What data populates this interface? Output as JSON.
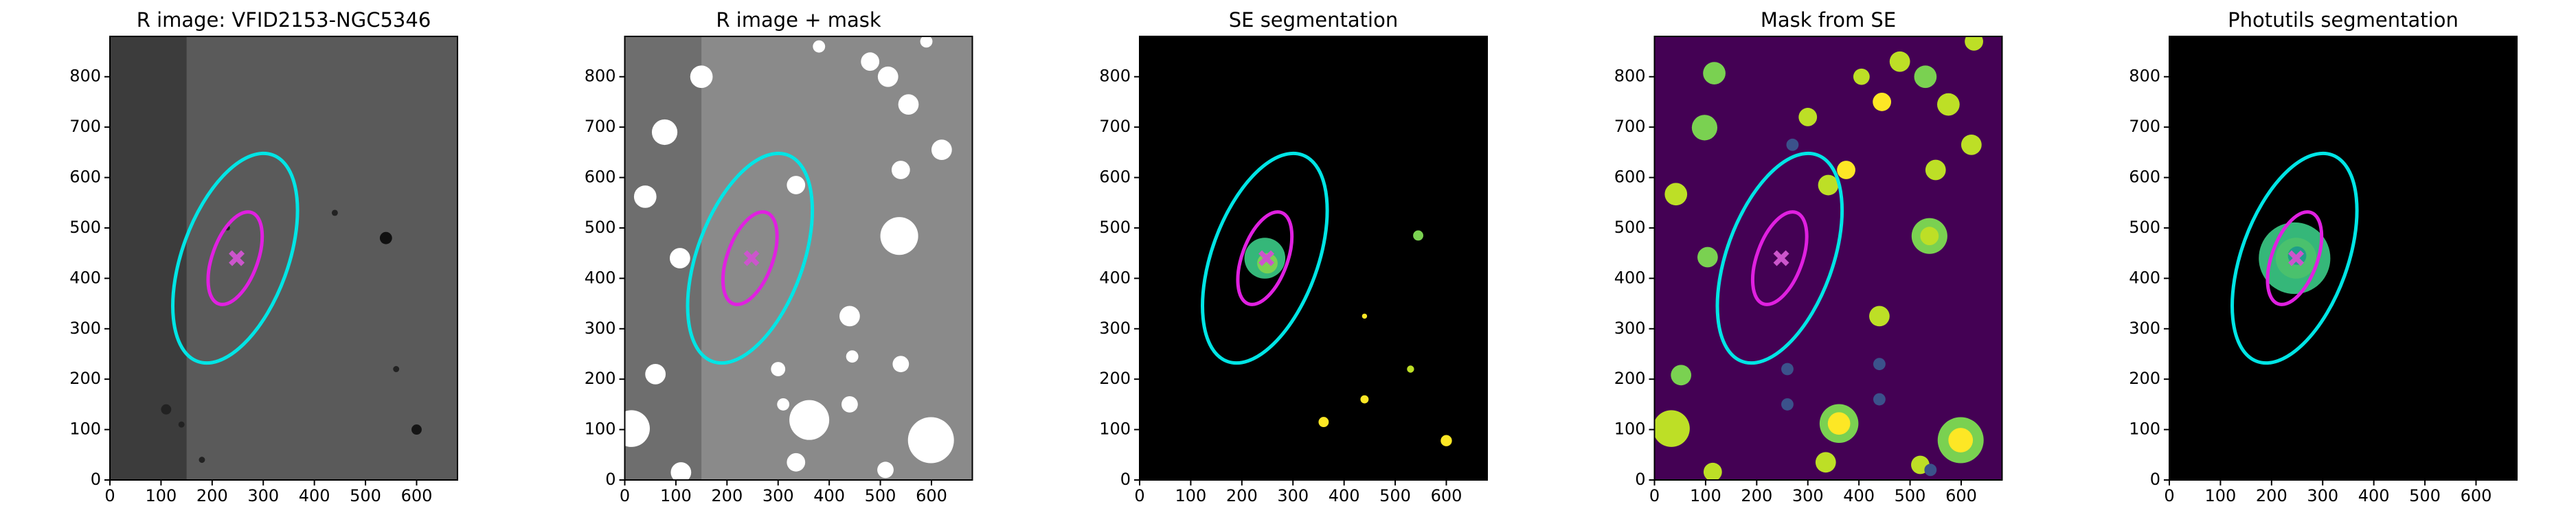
{
  "chart_data": [
    {
      "type": "image",
      "title": "R image: VFID2153-NGC5346",
      "xlim": [
        0,
        680
      ],
      "ylim": [
        0,
        880
      ],
      "xticks": [
        0,
        100,
        200,
        300,
        400,
        500,
        600
      ],
      "yticks": [
        0,
        100,
        200,
        300,
        400,
        500,
        600,
        700,
        800
      ],
      "ellipses": [
        {
          "center": [
            245,
            440
          ],
          "semi_axes": [
            215,
            105
          ],
          "angle": 70,
          "color": "#00e5e5"
        },
        {
          "center": [
            245,
            440
          ],
          "semi_axes": [
            95,
            45
          ],
          "angle": 70,
          "color": "#e020e0"
        }
      ],
      "marker": {
        "x": 248,
        "y": 440,
        "color": "#cc55cc"
      }
    },
    {
      "type": "image",
      "title": "R image + mask",
      "xlim": [
        0,
        680
      ],
      "ylim": [
        0,
        880
      ],
      "xticks": [
        0,
        100,
        200,
        300,
        400,
        500,
        600
      ],
      "yticks": [
        0,
        100,
        200,
        300,
        400,
        500,
        600,
        700,
        800
      ],
      "ellipses": [
        {
          "center": [
            245,
            440
          ],
          "semi_axes": [
            215,
            105
          ],
          "angle": 70,
          "color": "#00e5e5"
        },
        {
          "center": [
            245,
            440
          ],
          "semi_axes": [
            95,
            45
          ],
          "angle": 70,
          "color": "#e020e0"
        }
      ],
      "marker": {
        "x": 248,
        "y": 440,
        "color": "#cc55cc"
      }
    },
    {
      "type": "image",
      "title": "SE segmentation",
      "xlim": [
        0,
        680
      ],
      "ylim": [
        0,
        880
      ],
      "xticks": [
        0,
        100,
        200,
        300,
        400,
        500,
        600
      ],
      "yticks": [
        0,
        100,
        200,
        300,
        400,
        500,
        600,
        700,
        800
      ],
      "ellipses": [
        {
          "center": [
            245,
            440
          ],
          "semi_axes": [
            215,
            105
          ],
          "angle": 70,
          "color": "#00e5e5"
        },
        {
          "center": [
            245,
            440
          ],
          "semi_axes": [
            95,
            45
          ],
          "angle": 70,
          "color": "#e020e0"
        }
      ],
      "marker": {
        "x": 248,
        "y": 440,
        "color": "#cc55cc"
      }
    },
    {
      "type": "image",
      "title": "Mask from SE",
      "xlim": [
        0,
        680
      ],
      "ylim": [
        0,
        880
      ],
      "xticks": [
        0,
        100,
        200,
        300,
        400,
        500,
        600
      ],
      "yticks": [
        0,
        100,
        200,
        300,
        400,
        500,
        600,
        700,
        800
      ],
      "ellipses": [
        {
          "center": [
            245,
            440
          ],
          "semi_axes": [
            215,
            105
          ],
          "angle": 70,
          "color": "#00e5e5"
        },
        {
          "center": [
            245,
            440
          ],
          "semi_axes": [
            95,
            45
          ],
          "angle": 70,
          "color": "#e020e0"
        }
      ],
      "marker": {
        "x": 248,
        "y": 440,
        "color": "#cc55cc"
      }
    },
    {
      "type": "image",
      "title": "Photutils segmentation",
      "xlim": [
        0,
        680
      ],
      "ylim": [
        0,
        880
      ],
      "xticks": [
        0,
        100,
        200,
        300,
        400,
        500,
        600
      ],
      "yticks": [
        0,
        100,
        200,
        300,
        400,
        500,
        600,
        700,
        800
      ],
      "ellipses": [
        {
          "center": [
            245,
            440
          ],
          "semi_axes": [
            215,
            105
          ],
          "angle": 70,
          "color": "#00e5e5"
        },
        {
          "center": [
            245,
            440
          ],
          "semi_axes": [
            95,
            45
          ],
          "angle": 70,
          "color": "#e020e0"
        }
      ],
      "marker": {
        "x": 248,
        "y": 440,
        "color": "#cc55cc"
      }
    }
  ]
}
